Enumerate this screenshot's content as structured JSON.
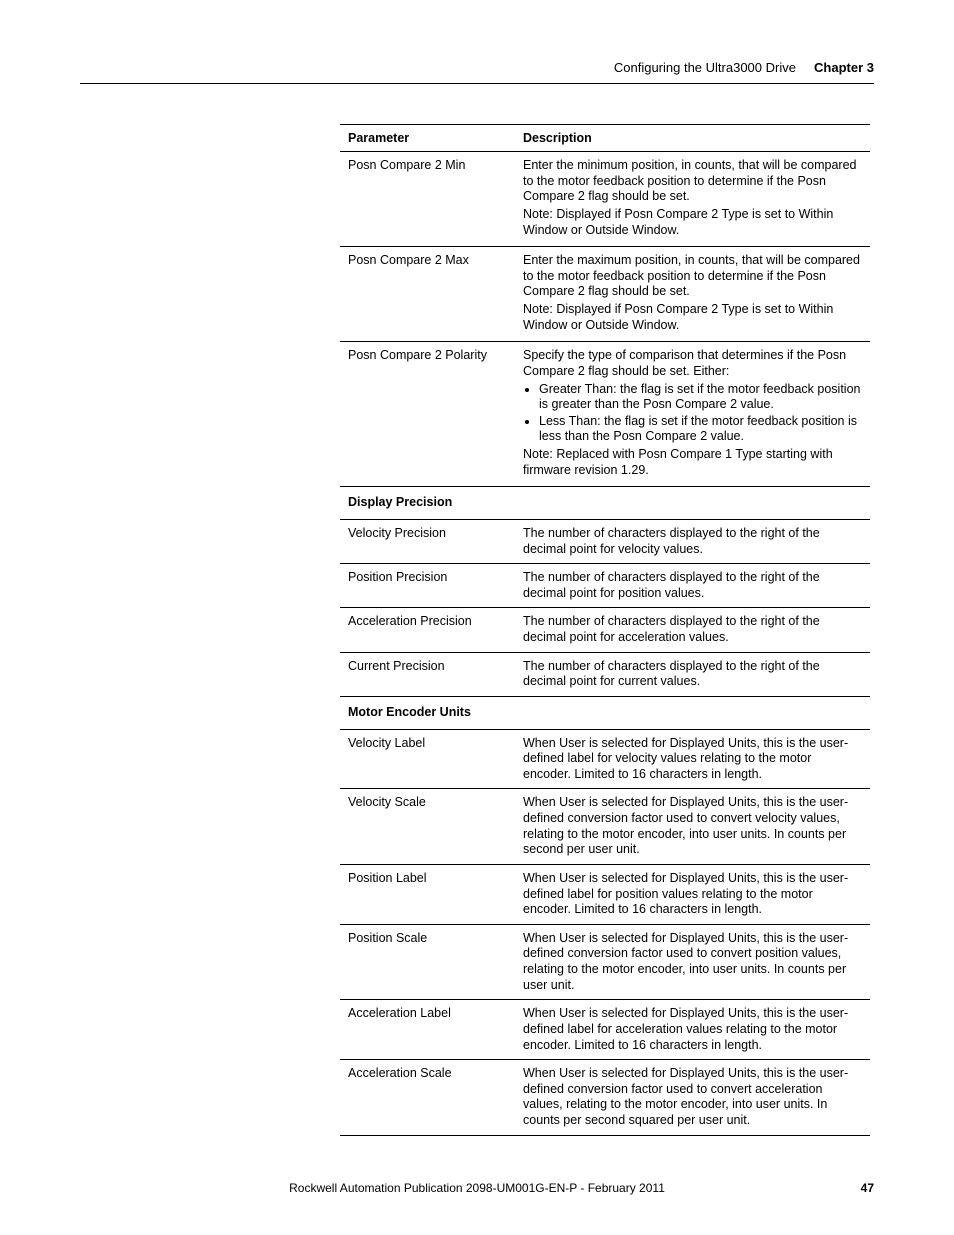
{
  "header": {
    "breadcrumb": "Configuring the Ultra3000 Drive",
    "chapter": "Chapter 3"
  },
  "table": {
    "col_parameter": "Parameter",
    "col_description": "Description"
  },
  "rows": {
    "r1_param": "Posn Compare 2 Min",
    "r1_desc_p1": "Enter the minimum position, in counts, that will be compared to the motor feedback position to determine if the Posn Compare 2 flag should be set.",
    "r1_desc_p2": "Note: Displayed if Posn Compare 2 Type is set to Within Window or Outside Window.",
    "r2_param": "Posn Compare 2 Max",
    "r2_desc_p1": "Enter the maximum position, in counts, that will be compared to the motor feedback position to determine if the Posn Compare 2 flag should be set.",
    "r2_desc_p2": "Note: Displayed if Posn Compare 2 Type is set to Within Window or Outside Window.",
    "r3_param": "Posn Compare 2 Polarity",
    "r3_desc_p1": "Specify the type of comparison that determines if the Posn Compare 2 flag should be set. Either:",
    "r3_bullet1": "Greater Than: the flag is set if the motor feedback position is greater than the Posn Compare 2 value.",
    "r3_bullet2": "Less Than: the flag is set if the motor feedback position is less than the Posn Compare 2 value.",
    "r3_desc_p2": "Note: Replaced with Posn Compare 1 Type starting with firmware revision 1.29.",
    "section1": "Display Precision",
    "r4_param": "Velocity Precision",
    "r4_desc": "The number of characters displayed to the right of the decimal point for velocity values.",
    "r5_param": "Position Precision",
    "r5_desc": "The number of characters displayed to the right of the decimal point for position values.",
    "r6_param": "Acceleration Precision",
    "r6_desc": "The number of characters displayed to the right of the decimal point for acceleration values.",
    "r7_param": "Current Precision",
    "r7_desc": "The number of characters displayed to the right of the decimal point for current values.",
    "section2": "Motor Encoder Units",
    "r8_param": "Velocity Label",
    "r8_desc": "When User is selected for Displayed Units, this is the user-defined label for velocity values relating to the motor encoder. Limited to 16 characters in length.",
    "r9_param": "Velocity Scale",
    "r9_desc": "When User is selected for Displayed Units, this is the user-defined conversion factor used to convert velocity values, relating to the motor encoder, into user units. In counts per second per user unit.",
    "r10_param": "Position Label",
    "r10_desc": "When User is selected for Displayed Units, this is the user-defined label for position values relating to the motor encoder. Limited to 16 characters in length.",
    "r11_param": "Position Scale",
    "r11_desc": "When User is selected for Displayed Units, this is the user-defined conversion factor used to convert position values, relating to the motor encoder, into user units. In counts per user unit.",
    "r12_param": "Acceleration Label",
    "r12_desc": "When User is selected for Displayed Units, this is the user-defined label for acceleration values relating to the motor encoder. Limited to 16 characters in length.",
    "r13_param": "Acceleration Scale",
    "r13_desc": "When User is selected for Displayed Units, this is the user-defined conversion factor used to convert acceleration values, relating to the motor encoder, into user units. In counts per second squared per user unit."
  },
  "footer": {
    "publication": "Rockwell Automation Publication 2098-UM001G-EN-P  - February 2011",
    "page_number": "47"
  }
}
